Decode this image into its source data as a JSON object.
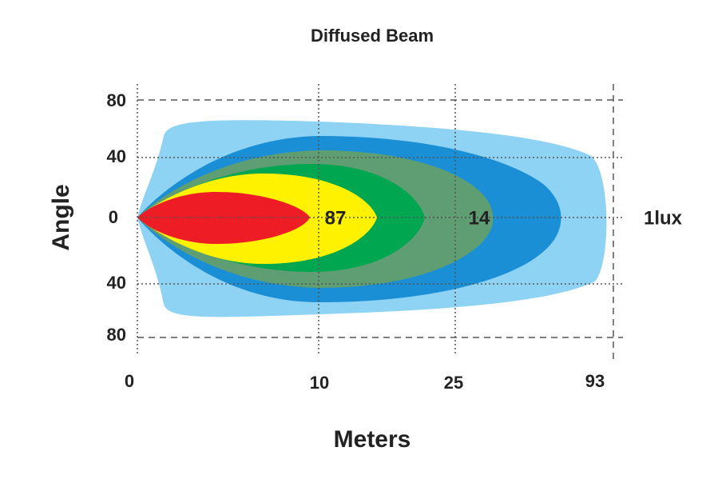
{
  "title": "Diffused Beam",
  "x_axis": {
    "label": "Meters",
    "ticks": [
      "0",
      "10",
      "25",
      "93"
    ]
  },
  "y_axis": {
    "label": "Angle",
    "ticks": [
      "80",
      "40",
      "0",
      "40",
      "80"
    ]
  },
  "annotations": [
    "87",
    "14",
    "1lux"
  ]
}
